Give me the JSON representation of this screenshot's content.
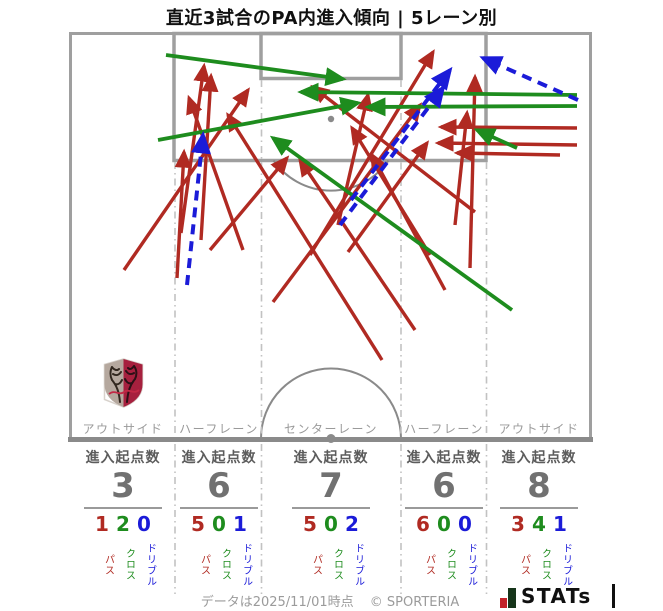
{
  "title": "直近3試合のPA内進入傾向 | 5レーン別",
  "stats_header": "進入起点数",
  "legend": {
    "pass": "パス",
    "cross": "クロス",
    "dribble": "ドリブル"
  },
  "colors": {
    "pass": "#b02a22",
    "cross": "#1e8c1e",
    "dribble": "#1b1bd8",
    "pitch_line": "#9f9f9f",
    "pitch_line_dark": "#8a8a8a",
    "lane_dash": "#c2c2c2",
    "brand_icon_red": "#c3242a",
    "brand_icon_green": "#16351a"
  },
  "chart_data": {
    "type": "scatter",
    "description": "Arrows on a half pitch showing penalty-area entries (origin point to entry point) over last 3 matches, split by 5 vertical lanes",
    "lanes": [
      {
        "label": "アウトサイド",
        "origins": 3,
        "pass": 1,
        "cross": 2,
        "dribble": 0
      },
      {
        "label": "ハーフレーン",
        "origins": 6,
        "pass": 5,
        "cross": 0,
        "dribble": 1
      },
      {
        "label": "センターレーン",
        "origins": 7,
        "pass": 5,
        "cross": 0,
        "dribble": 2
      },
      {
        "label": "ハーフレーン",
        "origins": 6,
        "pass": 6,
        "cross": 0,
        "dribble": 0
      },
      {
        "label": "アウトサイド",
        "origins": 8,
        "pass": 3,
        "cross": 4,
        "dribble": 1
      }
    ],
    "arrows": [
      {
        "type": "pass",
        "from": [
          124,
          270
        ],
        "to": [
          248,
          90
        ]
      },
      {
        "type": "pass",
        "from": [
          181,
          233
        ],
        "to": [
          204,
          66
        ]
      },
      {
        "type": "pass",
        "from": [
          201,
          240
        ],
        "to": [
          211,
          76
        ]
      },
      {
        "type": "pass",
        "from": [
          243,
          250
        ],
        "to": [
          189,
          98
        ]
      },
      {
        "type": "pass",
        "from": [
          177,
          278
        ],
        "to": [
          184,
          152
        ]
      },
      {
        "type": "pass",
        "from": [
          210,
          250
        ],
        "to": [
          287,
          158
        ]
      },
      {
        "type": "pass",
        "from": [
          310,
          255
        ],
        "to": [
          433,
          52
        ]
      },
      {
        "type": "pass",
        "from": [
          382,
          360
        ],
        "to": [
          228,
          115
        ]
      },
      {
        "type": "pass",
        "from": [
          273,
          302
        ],
        "to": [
          420,
          105
        ]
      },
      {
        "type": "pass",
        "from": [
          348,
          252
        ],
        "to": [
          427,
          143
        ]
      },
      {
        "type": "pass",
        "from": [
          338,
          225
        ],
        "to": [
          368,
          95
        ]
      },
      {
        "type": "pass",
        "from": [
          470,
          268
        ],
        "to": [
          475,
          77
        ]
      },
      {
        "type": "pass",
        "from": [
          475,
          212
        ],
        "to": [
          313,
          87
        ]
      },
      {
        "type": "pass",
        "from": [
          455,
          225
        ],
        "to": [
          467,
          113
        ]
      },
      {
        "type": "pass",
        "from": [
          430,
          255
        ],
        "to": [
          352,
          128
        ]
      },
      {
        "type": "pass",
        "from": [
          445,
          290
        ],
        "to": [
          372,
          155
        ]
      },
      {
        "type": "pass",
        "from": [
          415,
          330
        ],
        "to": [
          300,
          160
        ]
      },
      {
        "type": "pass",
        "from": [
          577,
          128
        ],
        "to": [
          441,
          127
        ]
      },
      {
        "type": "pass",
        "from": [
          577,
          145
        ],
        "to": [
          438,
          143
        ]
      },
      {
        "type": "pass",
        "from": [
          560,
          155
        ],
        "to": [
          457,
          153
        ]
      },
      {
        "type": "cross",
        "from": [
          166,
          55
        ],
        "to": [
          343,
          79
        ]
      },
      {
        "type": "cross",
        "from": [
          158,
          140
        ],
        "to": [
          358,
          103
        ]
      },
      {
        "type": "cross",
        "from": [
          577,
          95
        ],
        "to": [
          301,
          92
        ]
      },
      {
        "type": "cross",
        "from": [
          577,
          106
        ],
        "to": [
          368,
          107
        ]
      },
      {
        "type": "cross",
        "from": [
          517,
          148
        ],
        "to": [
          477,
          130
        ]
      },
      {
        "type": "cross",
        "from": [
          512,
          310
        ],
        "to": [
          273,
          138
        ]
      },
      {
        "type": "dribble",
        "from": [
          187,
          285
        ],
        "to": [
          203,
          135
        ]
      },
      {
        "type": "dribble",
        "from": [
          351,
          200
        ],
        "to": [
          450,
          70
        ]
      },
      {
        "type": "dribble",
        "from": [
          340,
          225
        ],
        "to": [
          443,
          88
        ]
      },
      {
        "type": "dribble",
        "from": [
          578,
          100
        ],
        "to": [
          483,
          58
        ]
      }
    ]
  },
  "footer": {
    "note": "データは2025/11/01時点",
    "copyright": "© SPORTERIA",
    "brand": "STATs"
  }
}
